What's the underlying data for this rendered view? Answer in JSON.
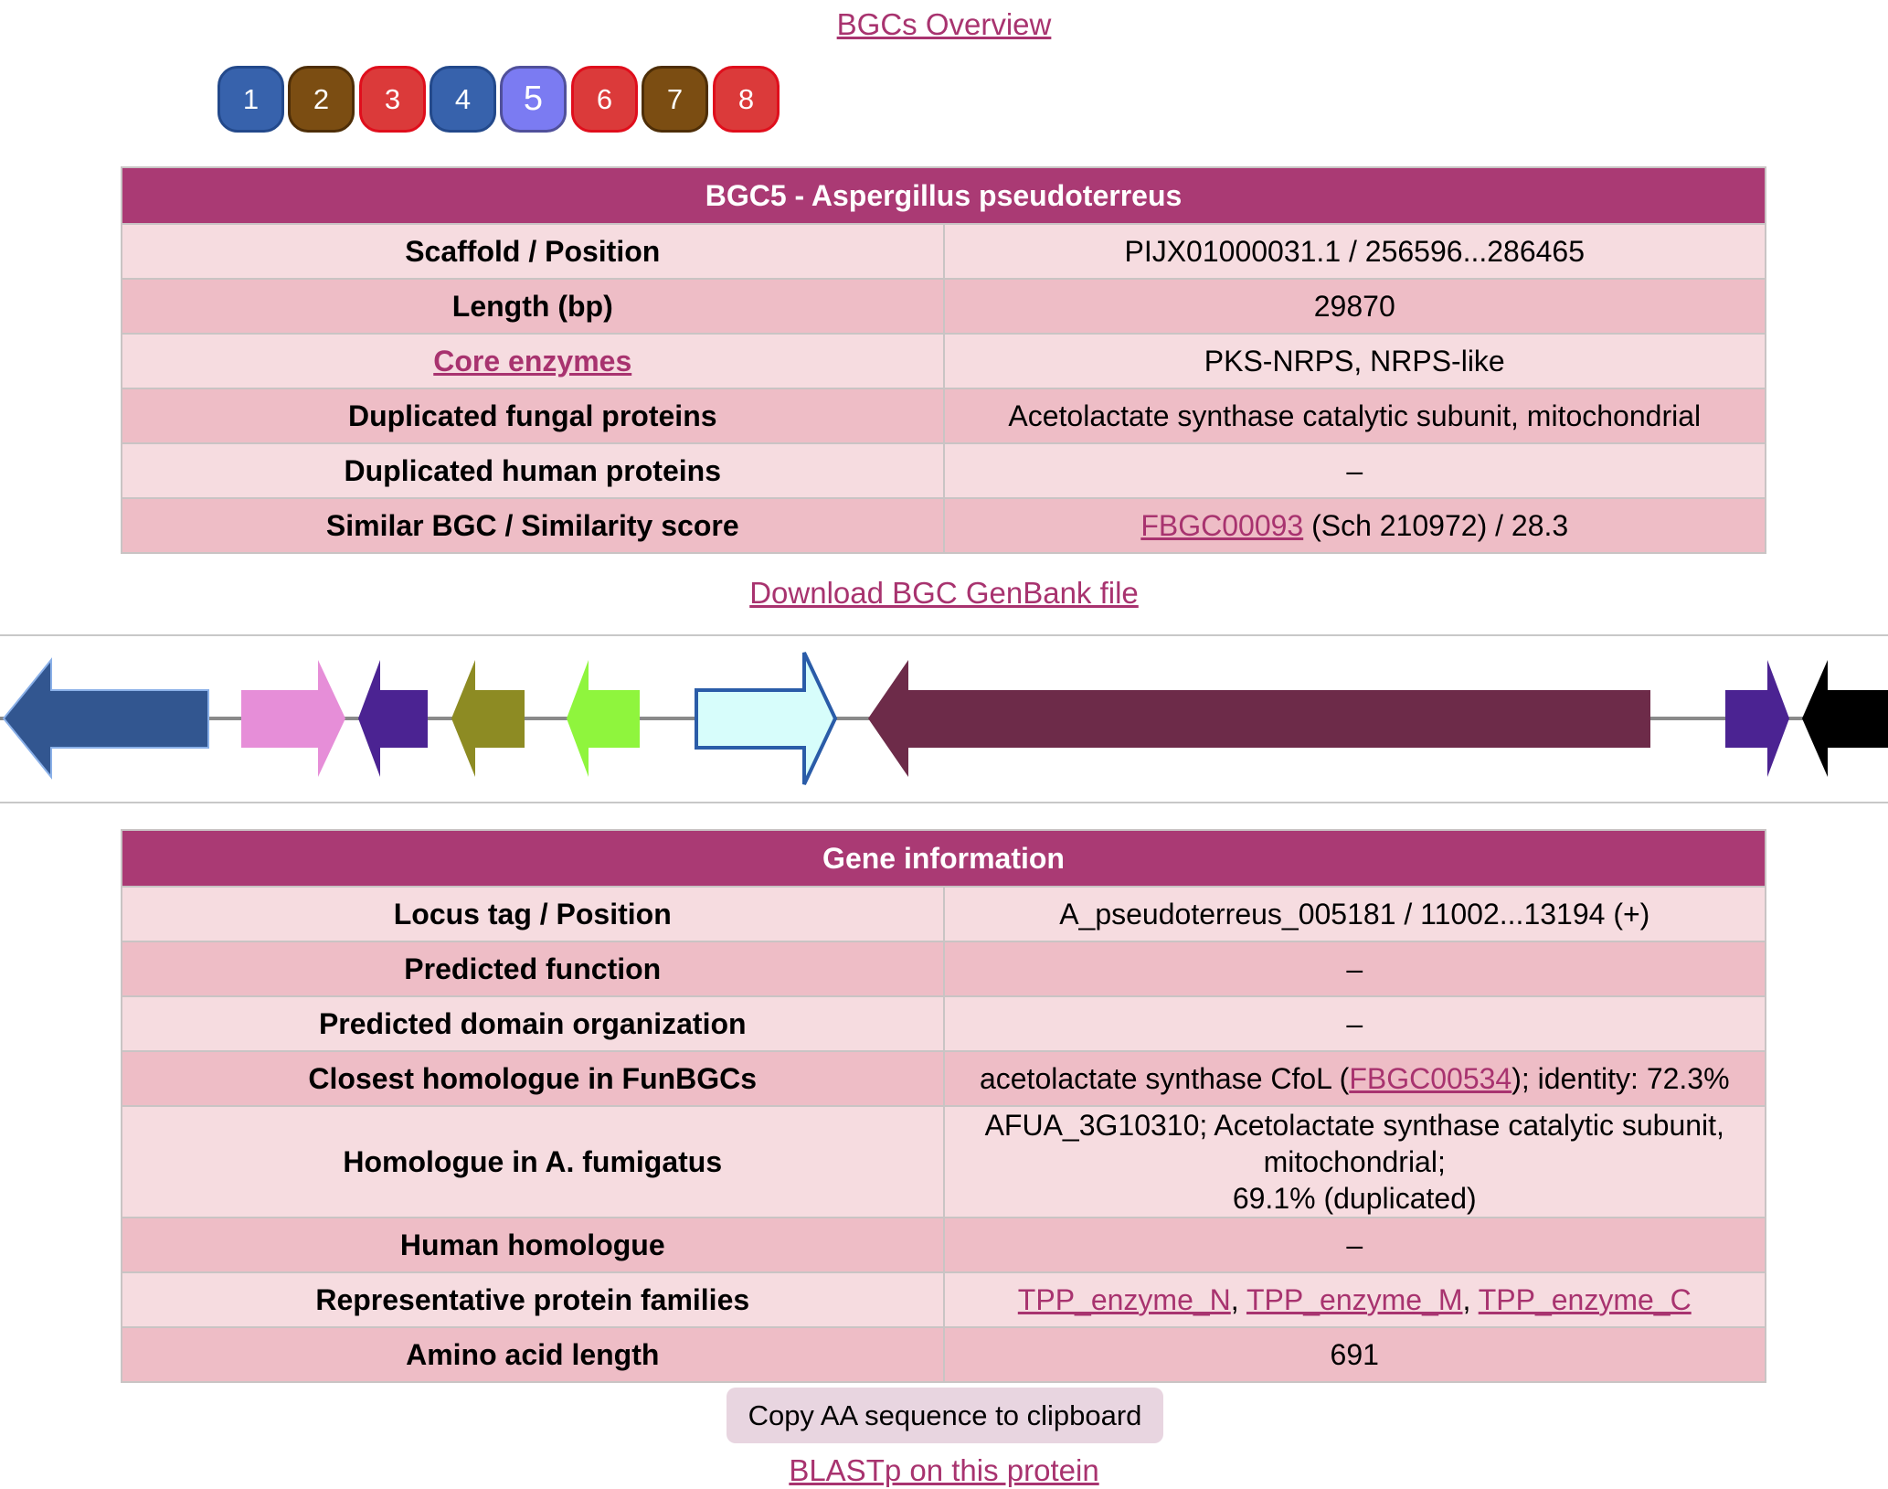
{
  "overview_link": "BGCs Overview",
  "bgc_nav": [
    {
      "label": "1",
      "color": "#3762ac"
    },
    {
      "label": "2",
      "color": "#7b4d12"
    },
    {
      "label": "3",
      "color": "#db3a3a"
    },
    {
      "label": "4",
      "color": "#3762ac"
    },
    {
      "label": "5",
      "color": "#7b7bf2"
    },
    {
      "label": "6",
      "color": "#db3a3a"
    },
    {
      "label": "7",
      "color": "#7b4d12"
    },
    {
      "label": "8",
      "color": "#db3a3a"
    }
  ],
  "bgc_table": {
    "title": "BGC5 - Aspergillus pseudoterreus",
    "scaffold_key": "Scaffold / Position",
    "scaffold_val": "PIJX01000031.1 / 256596...286465",
    "length_key": "Length (bp)",
    "length_val": "29870",
    "core_key": "Core enzymes",
    "core_val": "PKS-NRPS, NRPS-like",
    "dup_fungal_key": "Duplicated fungal proteins",
    "dup_fungal_val": "Acetolactate synthase catalytic subunit, mitochondrial",
    "dup_human_key": "Duplicated human proteins",
    "dup_human_val": "–",
    "similar_key": "Similar BGC / Similarity score",
    "similar_link": "FBGC00093",
    "similar_rest": " (Sch 210972) / 28.3"
  },
  "download_link": "Download BGC GenBank file",
  "gene_colors": [
    "#325690",
    "#e68ed8",
    "#4b2392",
    "#8d8b23",
    "#8ff53d",
    "#d7fdfb",
    "#6d2b49",
    "#4b2392",
    "#000000"
  ],
  "gene_table": {
    "title": "Gene information",
    "locus_key": "Locus tag / Position",
    "locus_val": "A_pseudoterreus_005181 / 11002...13194 (+)",
    "function_key": "Predicted function",
    "function_val": "–",
    "domain_key": "Predicted domain organization",
    "domain_val": "–",
    "closest_key": "Closest homologue in FunBGCs",
    "closest_pre": "acetolactate synthase CfoL (",
    "closest_link": "FBGC00534",
    "closest_post": "); identity: 72.3%",
    "afum_key": "Homologue in A. fumigatus",
    "afum_line1": "AFUA_3G10310; Acetolactate synthase catalytic subunit, mitochondrial;",
    "afum_line2": "69.1% (duplicated)",
    "human_key": "Human homologue",
    "human_val": "–",
    "families_key": "Representative protein families",
    "family1": "TPP_enzyme_N",
    "family2": "TPP_enzyme_M",
    "family3": "TPP_enzyme_C",
    "sep": ", ",
    "aa_key": "Amino acid length",
    "aa_val": "691"
  },
  "copy_button": "Copy AA sequence to clipboard",
  "blast_link": "BLASTp on this protein"
}
